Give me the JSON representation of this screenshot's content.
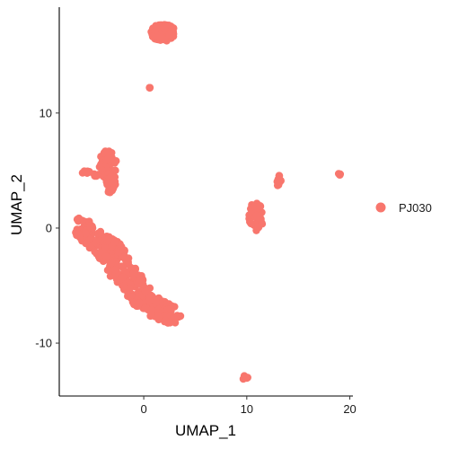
{
  "colors": {
    "point": "#F8766D",
    "axis": "#000000"
  },
  "chart_data": {
    "type": "scatter",
    "title": "",
    "xlabel": "UMAP_1",
    "ylabel": "UMAP_2",
    "xlim": [
      -8.2,
      20.3
    ],
    "ylim": [
      -14.6,
      19.2
    ],
    "xticks": [
      0,
      10,
      20
    ],
    "xtick_labels": [
      "0",
      "10",
      "20"
    ],
    "yticks": [
      -10,
      0,
      10
    ],
    "ytick_labels": [
      "-10",
      "0",
      "10"
    ],
    "grid": false,
    "legend": {
      "position": "right",
      "entries": [
        "PJ030"
      ]
    },
    "series": [
      {
        "name": "PJ030",
        "clusters": [
          {
            "cx": 1.9,
            "cy": 17.0,
            "rx": 1.2,
            "ry": 0.75,
            "n": 90
          },
          {
            "cx": 0.6,
            "cy": 12.1,
            "rx": 0.12,
            "ry": 0.12,
            "n": 3
          },
          {
            "cx": -3.5,
            "cy": 5.5,
            "rx": 0.85,
            "ry": 1.25,
            "n": 55
          },
          {
            "cx": -3.2,
            "cy": 3.9,
            "rx": 0.5,
            "ry": 0.9,
            "n": 20
          },
          {
            "cx": -5.6,
            "cy": 4.9,
            "rx": 0.5,
            "ry": 0.15,
            "n": 8
          },
          {
            "cx": -4.5,
            "cy": 4.6,
            "rx": 0.4,
            "ry": 0.2,
            "n": 6
          },
          {
            "cx": 10.9,
            "cy": 1.0,
            "rx": 0.7,
            "ry": 1.3,
            "n": 45
          },
          {
            "cx": 13.1,
            "cy": 4.2,
            "rx": 0.35,
            "ry": 0.55,
            "n": 12
          },
          {
            "cx": 19.0,
            "cy": 4.7,
            "rx": 0.1,
            "ry": 0.1,
            "n": 3
          },
          {
            "cx": 9.9,
            "cy": -13.0,
            "rx": 0.3,
            "ry": 0.3,
            "n": 8
          }
        ],
        "bands": [
          {
            "path": [
              [
                -6.2,
                0.1
              ],
              [
                -5.2,
                -0.6
              ],
              [
                -3.8,
                -2.0
              ],
              [
                -2.5,
                -3.8
              ],
              [
                -1.2,
                -5.4
              ],
              [
                0.2,
                -6.4
              ],
              [
                1.5,
                -7.1
              ],
              [
                2.8,
                -7.5
              ]
            ],
            "width": 1.2,
            "n": 320
          },
          {
            "path": [
              [
                -3.8,
                -0.6
              ],
              [
                -2.6,
                -1.6
              ],
              [
                -1.6,
                -2.9
              ],
              [
                -0.6,
                -4.2
              ],
              [
                0.3,
                -5.3
              ]
            ],
            "width": 0.5,
            "n": 60
          }
        ]
      }
    ]
  }
}
